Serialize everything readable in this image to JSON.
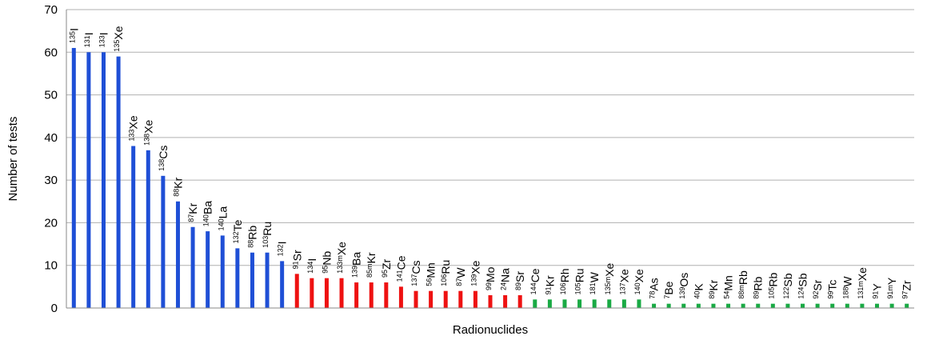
{
  "chart_data": {
    "type": "bar",
    "title": "",
    "xlabel": "Radionuclides",
    "ylabel": "Number of tests",
    "ylim": [
      0,
      70
    ],
    "yticks": [
      0,
      10,
      20,
      30,
      40,
      50,
      60,
      70
    ],
    "grid": true,
    "legend": "none",
    "group_colors": [
      "#1f4fd6",
      "#ee1111",
      "#19aa44"
    ],
    "bars": [
      {
        "mass": "135",
        "element": "I",
        "value": 61,
        "group": 0
      },
      {
        "mass": "131",
        "element": "I",
        "value": 60,
        "group": 0
      },
      {
        "mass": "133",
        "element": "I",
        "value": 60,
        "group": 0
      },
      {
        "mass": "135",
        "element": "Xe",
        "value": 59,
        "group": 0
      },
      {
        "mass": "133",
        "element": "Xe",
        "value": 38,
        "group": 0
      },
      {
        "mass": "138",
        "element": "Xe",
        "value": 37,
        "group": 0
      },
      {
        "mass": "138",
        "element": "Cs",
        "value": 31,
        "group": 0
      },
      {
        "mass": "88",
        "element": "Kr",
        "value": 25,
        "group": 0
      },
      {
        "mass": "87",
        "element": "Kr",
        "value": 19,
        "group": 0
      },
      {
        "mass": "140",
        "element": "Ba",
        "value": 18,
        "group": 0
      },
      {
        "mass": "140",
        "element": "La",
        "value": 17,
        "group": 0
      },
      {
        "mass": "132",
        "element": "Te",
        "value": 14,
        "group": 0
      },
      {
        "mass": "88",
        "element": "Rb",
        "value": 13,
        "group": 0
      },
      {
        "mass": "103",
        "element": "Ru",
        "value": 13,
        "group": 0
      },
      {
        "mass": "132",
        "element": "I",
        "value": 11,
        "group": 0
      },
      {
        "mass": "91",
        "element": "Sr",
        "value": 8,
        "group": 1
      },
      {
        "mass": "134",
        "element": "I",
        "value": 7,
        "group": 1
      },
      {
        "mass": "95",
        "element": "Nb",
        "value": 7,
        "group": 1
      },
      {
        "mass": "133m",
        "element": "Xe",
        "value": 7,
        "group": 1
      },
      {
        "mass": "139",
        "element": "Ba",
        "value": 6,
        "group": 1
      },
      {
        "mass": "85m",
        "element": "Kr",
        "value": 6,
        "group": 1
      },
      {
        "mass": "95",
        "element": "Zr",
        "value": 6,
        "group": 1
      },
      {
        "mass": "141",
        "element": "Ce",
        "value": 5,
        "group": 1
      },
      {
        "mass": "137",
        "element": "Cs",
        "value": 4,
        "group": 1
      },
      {
        "mass": "56",
        "element": "Mn",
        "value": 4,
        "group": 1
      },
      {
        "mass": "106",
        "element": "Ru",
        "value": 4,
        "group": 1
      },
      {
        "mass": "87",
        "element": "W",
        "value": 4,
        "group": 1
      },
      {
        "mass": "139",
        "element": "Xe",
        "value": 4,
        "group": 1
      },
      {
        "mass": "99",
        "element": "Mo",
        "value": 3,
        "group": 1
      },
      {
        "mass": "24",
        "element": "Na",
        "value": 3,
        "group": 1
      },
      {
        "mass": "89",
        "element": "Sr",
        "value": 3,
        "group": 1
      },
      {
        "mass": "144",
        "element": "Ce",
        "value": 2,
        "group": 2
      },
      {
        "mass": "91",
        "element": "Kr",
        "value": 2,
        "group": 2
      },
      {
        "mass": "106",
        "element": "Rh",
        "value": 2,
        "group": 2
      },
      {
        "mass": "105",
        "element": "Ru",
        "value": 2,
        "group": 2
      },
      {
        "mass": "181",
        "element": "W",
        "value": 2,
        "group": 2
      },
      {
        "mass": "135m",
        "element": "Xe",
        "value": 2,
        "group": 2
      },
      {
        "mass": "137",
        "element": "Xe",
        "value": 2,
        "group": 2
      },
      {
        "mass": "140",
        "element": "Xe",
        "value": 2,
        "group": 2
      },
      {
        "mass": "78",
        "element": "As",
        "value": 1,
        "group": 2
      },
      {
        "mass": "7",
        "element": "Be",
        "value": 1,
        "group": 2
      },
      {
        "mass": "139",
        "element": "Os",
        "value": 1,
        "group": 2
      },
      {
        "mass": "40",
        "element": "K",
        "value": 1,
        "group": 2
      },
      {
        "mass": "89",
        "element": "Kr",
        "value": 1,
        "group": 2
      },
      {
        "mass": "54",
        "element": "Mn",
        "value": 1,
        "group": 2
      },
      {
        "mass": "88m",
        "element": "Rb",
        "value": 1,
        "group": 2
      },
      {
        "mass": "89",
        "element": "Rb",
        "value": 1,
        "group": 2
      },
      {
        "mass": "105",
        "element": "Rb",
        "value": 1,
        "group": 2
      },
      {
        "mass": "122",
        "element": "Sb",
        "value": 1,
        "group": 2
      },
      {
        "mass": "124",
        "element": "Sb",
        "value": 1,
        "group": 2
      },
      {
        "mass": "92",
        "element": "Sr",
        "value": 1,
        "group": 2
      },
      {
        "mass": "99",
        "element": "Tc",
        "value": 1,
        "group": 2
      },
      {
        "mass": "188",
        "element": "W",
        "value": 1,
        "group": 2
      },
      {
        "mass": "131m",
        "element": "Xe",
        "value": 1,
        "group": 2
      },
      {
        "mass": "91",
        "element": "Y",
        "value": 1,
        "group": 2
      },
      {
        "mass": "91m",
        "element": "Y",
        "value": 1,
        "group": 2
      },
      {
        "mass": "97",
        "element": "Zr",
        "value": 1,
        "group": 2
      }
    ]
  }
}
